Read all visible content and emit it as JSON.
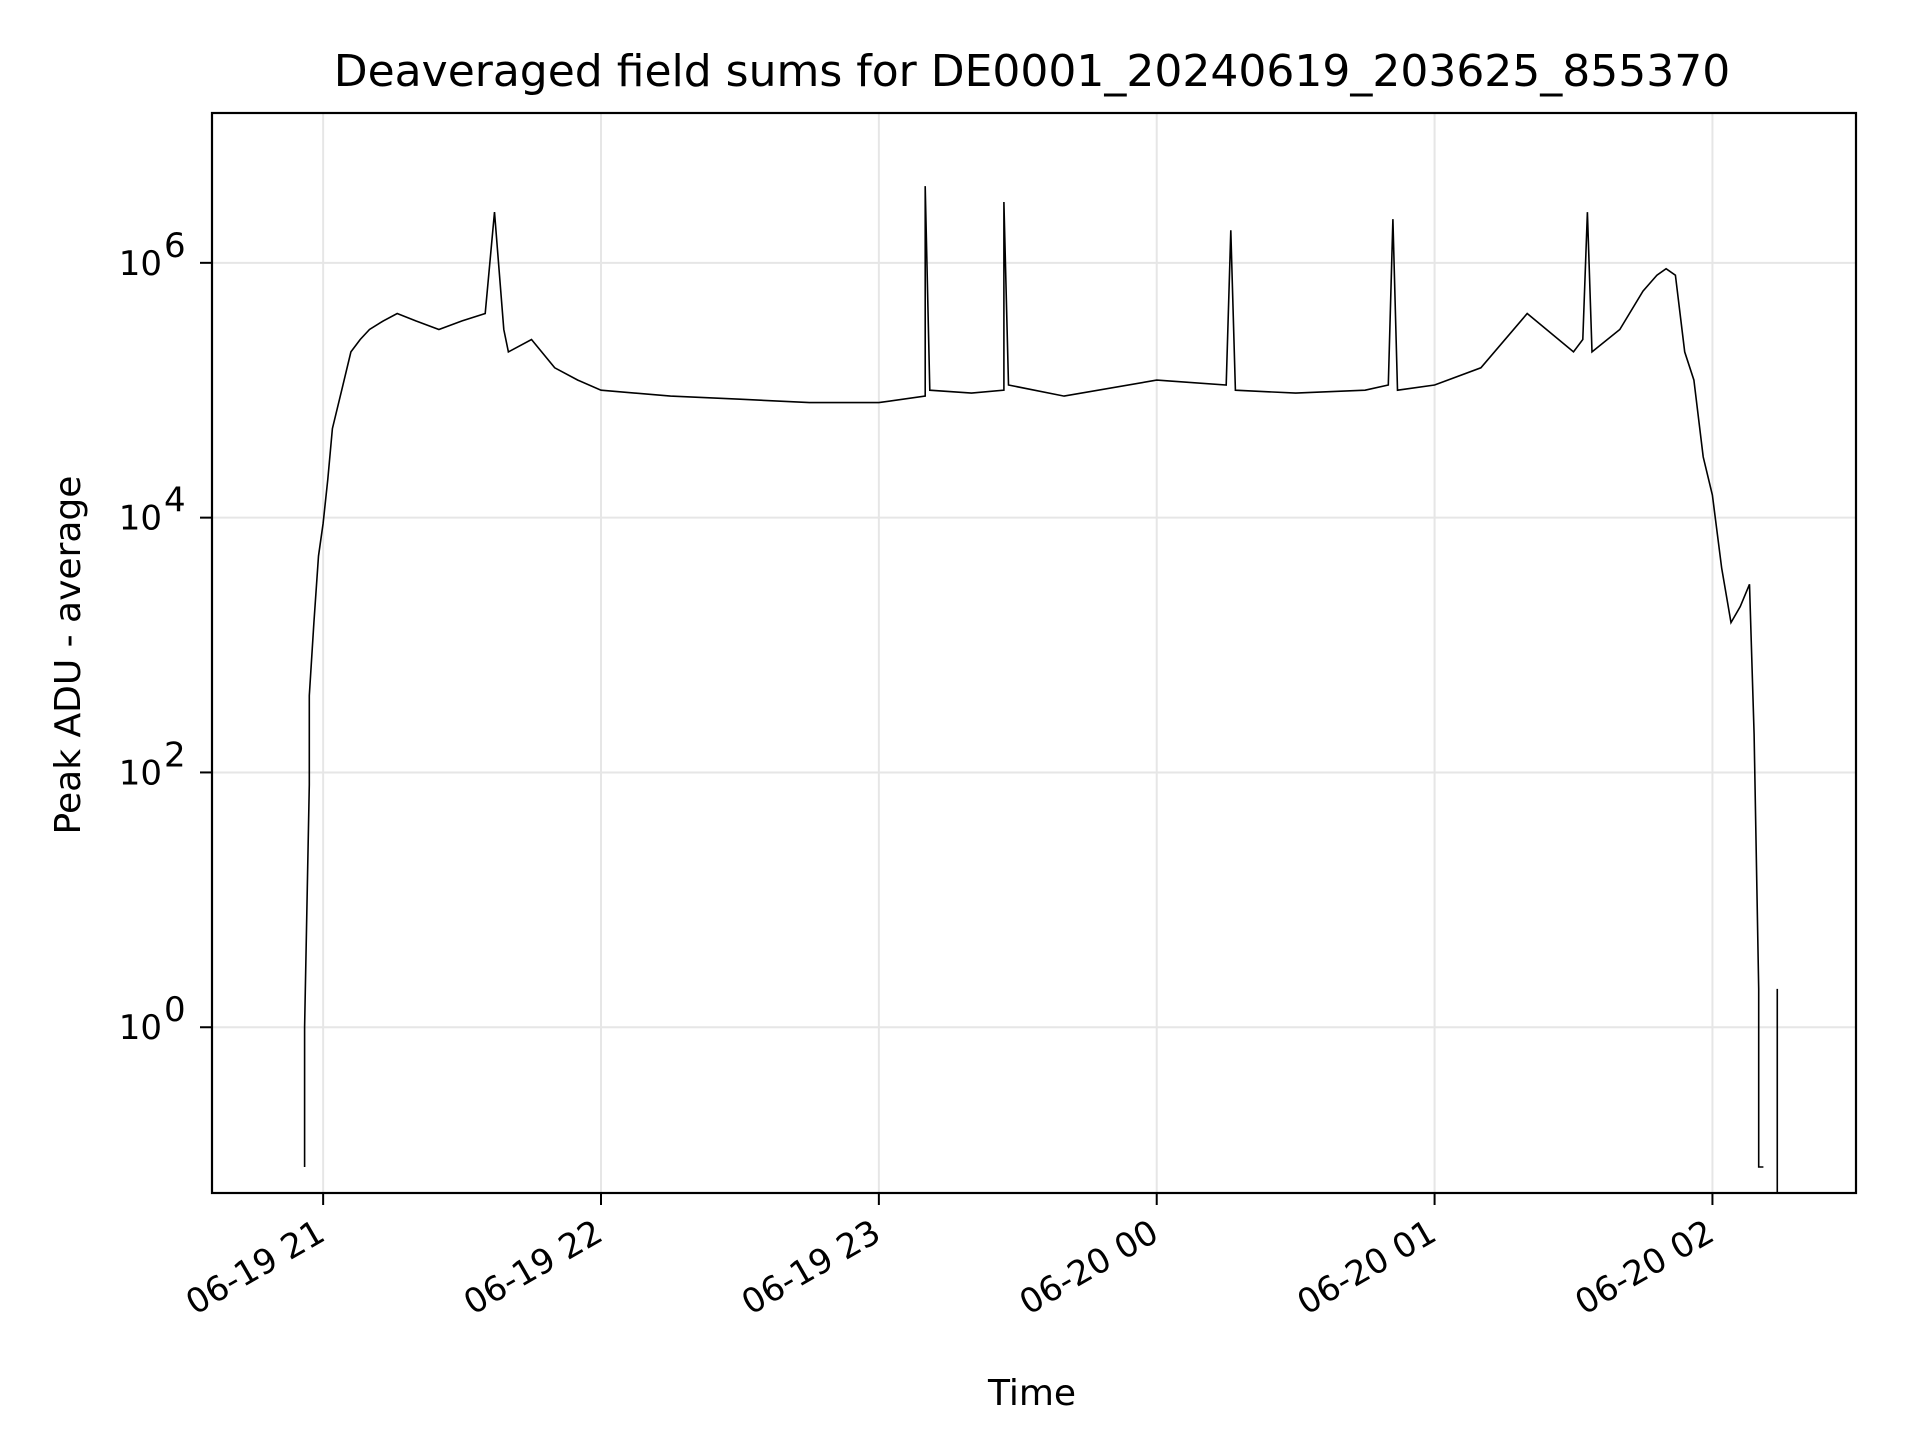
{
  "chart_data": {
    "type": "line",
    "title": "Deaveraged field sums for DE0001_20240619_203625_855370",
    "xlabel": "Time",
    "ylabel": "Peak ADU - average",
    "yscale": "log",
    "ylim": [
      0.05,
      15000000
    ],
    "xlim": [
      "2024-06-19 20:36",
      "2024-06-20 02:31"
    ],
    "grid": true,
    "x_ticks": [
      {
        "value": "2024-06-19 21:00",
        "label": "06-19 21"
      },
      {
        "value": "2024-06-19 22:00",
        "label": "06-19 22"
      },
      {
        "value": "2024-06-19 23:00",
        "label": "06-19 23"
      },
      {
        "value": "2024-06-20 00:00",
        "label": "06-20 00"
      },
      {
        "value": "2024-06-20 01:00",
        "label": "06-20 01"
      },
      {
        "value": "2024-06-20 02:00",
        "label": "06-20 02"
      }
    ],
    "y_ticks": [
      {
        "value": 1,
        "base": "10",
        "exp": "0"
      },
      {
        "value": 100,
        "base": "10",
        "exp": "2"
      },
      {
        "value": 10000,
        "base": "10",
        "exp": "4"
      },
      {
        "value": 1000000,
        "base": "10",
        "exp": "6"
      }
    ],
    "series_color": "#000000",
    "series": [
      {
        "x": [
          "2024-06-19 20:56",
          "2024-06-19 20:56",
          "2024-06-19 20:57",
          "2024-06-19 20:57",
          "2024-06-19 20:58",
          "2024-06-19 20:59",
          "2024-06-19 21:00",
          "2024-06-19 21:01",
          "2024-06-19 21:02",
          "2024-06-19 21:04",
          "2024-06-19 21:06",
          "2024-06-19 21:08",
          "2024-06-19 21:10",
          "2024-06-19 21:13",
          "2024-06-19 21:16",
          "2024-06-19 21:20",
          "2024-06-19 21:25",
          "2024-06-19 21:30",
          "2024-06-19 21:35",
          "2024-06-19 21:37",
          "2024-06-19 21:39",
          "2024-06-19 21:40",
          "2024-06-19 21:45",
          "2024-06-19 21:50",
          "2024-06-19 21:55",
          "2024-06-19 22:00",
          "2024-06-19 22:15",
          "2024-06-19 22:30",
          "2024-06-19 22:45",
          "2024-06-19 23:00",
          "2024-06-19 23:10",
          "2024-06-19 23:10",
          "2024-06-19 23:11",
          "2024-06-19 23:20",
          "2024-06-19 23:27",
          "2024-06-19 23:27",
          "2024-06-19 23:28",
          "2024-06-19 23:40",
          "2024-06-20 00:00",
          "2024-06-20 00:15",
          "2024-06-20 00:16",
          "2024-06-20 00:17",
          "2024-06-20 00:30",
          "2024-06-20 00:45",
          "2024-06-20 00:50",
          "2024-06-20 00:51",
          "2024-06-20 00:52",
          "2024-06-20 01:00",
          "2024-06-20 01:10",
          "2024-06-20 01:20",
          "2024-06-20 01:30",
          "2024-06-20 01:32",
          "2024-06-20 01:33",
          "2024-06-20 01:34",
          "2024-06-20 01:40",
          "2024-06-20 01:45",
          "2024-06-20 01:48",
          "2024-06-20 01:50",
          "2024-06-20 01:52",
          "2024-06-20 01:54",
          "2024-06-20 01:56",
          "2024-06-20 01:58",
          "2024-06-20 02:00",
          "2024-06-20 02:02",
          "2024-06-20 02:04",
          "2024-06-20 02:06",
          "2024-06-20 02:08",
          "2024-06-20 02:09",
          "2024-06-20 02:10",
          "2024-06-20 02:10",
          "2024-06-20 02:11",
          "2024-06-20 02:11",
          "2024-06-20 02:11"
        ],
        "y": [
          0.08,
          1,
          80,
          400,
          1500,
          5000,
          9000,
          20000,
          50000,
          100000,
          200000,
          250000,
          300000,
          350000,
          400000,
          350000,
          300000,
          350000,
          400000,
          2500000,
          300000,
          200000,
          250000,
          150000,
          120000,
          100000,
          90000,
          85000,
          80000,
          80000,
          90000,
          4000000,
          100000,
          95000,
          100000,
          3000000,
          110000,
          90000,
          120000,
          110000,
          1800000,
          100000,
          95000,
          100000,
          110000,
          2200000,
          100000,
          110000,
          150000,
          400000,
          200000,
          250000,
          2500000,
          200000,
          300000,
          600000,
          800000,
          900000,
          800000,
          200000,
          120000,
          30000,
          15000,
          4000,
          1500,
          2000,
          3000,
          200,
          2,
          0.08,
          0.08,
          0.08,
          0.08
        ]
      }
    ],
    "extra_spike": {
      "x": "2024-06-20 02:14",
      "y": 2
    }
  }
}
